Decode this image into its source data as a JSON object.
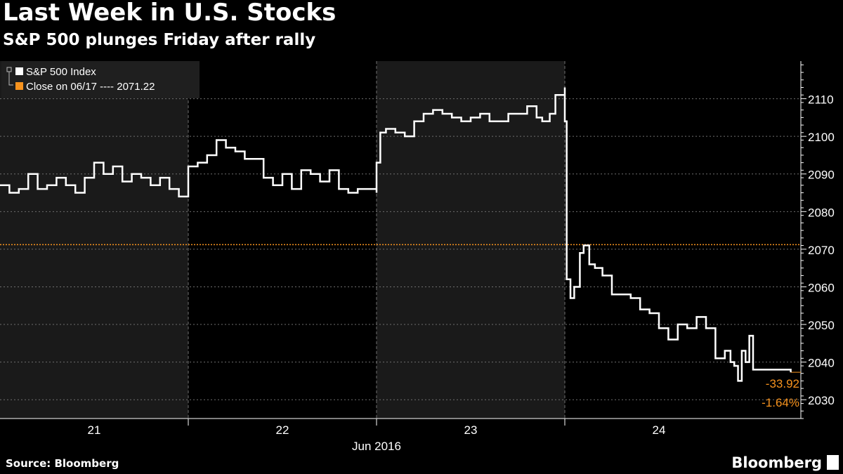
{
  "header": {
    "title": "Last Week in U.S. Stocks",
    "subtitle": "S&P 500 plunges Friday after rally"
  },
  "footer": {
    "source": "Source: Bloomberg",
    "brand": "Bloomberg"
  },
  "colors": {
    "line": "#ffffff",
    "reference": "#f7931e",
    "shade": "#1a1a1a",
    "grid": "#6f6f6f",
    "background": "#000000"
  },
  "chart_data": {
    "type": "line",
    "xlabel": "Jun 2016",
    "ylabel": "",
    "ylim": [
      2025,
      2120
    ],
    "y_ticks": [
      "2030",
      "2040",
      "2050",
      "2060",
      "2070",
      "2080",
      "2090",
      "2100",
      "2110"
    ],
    "days": [
      {
        "label": "21",
        "shaded": true
      },
      {
        "label": "22",
        "shaded": false
      },
      {
        "label": "23",
        "shaded": true
      },
      {
        "label": "24",
        "shaded": false
      }
    ],
    "grid": true,
    "legend": {
      "position": "top-left",
      "entries": [
        {
          "label": "S&P 500 Index",
          "color": "#ffffff"
        },
        {
          "label": "Close on 06/17 ---- 2071.22",
          "color": "#f7931e"
        }
      ]
    },
    "reference_line": {
      "label": "Close on 06/17",
      "value": 2071.22
    },
    "annotations": [
      "-33.92",
      "-1.64%"
    ],
    "last_value": 2037.3,
    "series": [
      {
        "name": "S&P 500 Index",
        "x": [
          0.0,
          0.05,
          0.1,
          0.15,
          0.2,
          0.25,
          0.3,
          0.35,
          0.4,
          0.45,
          0.5,
          0.55,
          0.6,
          0.65,
          0.7,
          0.75,
          0.8,
          0.85,
          0.9,
          0.95,
          1.0,
          1.0,
          1.05,
          1.1,
          1.15,
          1.2,
          1.25,
          1.3,
          1.35,
          1.4,
          1.45,
          1.5,
          1.55,
          1.6,
          1.65,
          1.7,
          1.75,
          1.8,
          1.85,
          1.9,
          1.95,
          2.0,
          2.0,
          2.02,
          2.05,
          2.1,
          2.15,
          2.2,
          2.25,
          2.3,
          2.35,
          2.4,
          2.45,
          2.5,
          2.55,
          2.6,
          2.65,
          2.7,
          2.75,
          2.8,
          2.85,
          2.88,
          2.92,
          2.95,
          3.0,
          3.0,
          3.01,
          3.03,
          3.05,
          3.08,
          3.1,
          3.13,
          3.16,
          3.2,
          3.25,
          3.3,
          3.35,
          3.4,
          3.45,
          3.5,
          3.55,
          3.6,
          3.65,
          3.7,
          3.75,
          3.8,
          3.85,
          3.88,
          3.9,
          3.92,
          3.94,
          3.96,
          3.98,
          4.0,
          4.2
        ],
        "y": [
          2087,
          2085,
          2086,
          2090,
          2086,
          2087,
          2089,
          2087,
          2085,
          2089,
          2093,
          2090,
          2092,
          2088,
          2090,
          2089,
          2087,
          2089,
          2086,
          2084,
          2085,
          2092,
          2093,
          2095,
          2099,
          2097,
          2096,
          2094,
          2094,
          2089,
          2087,
          2090,
          2086,
          2091,
          2090,
          2088,
          2091,
          2086,
          2085,
          2086,
          2086,
          2085,
          2093,
          2101,
          2102,
          2101,
          2100,
          2104,
          2106,
          2107,
          2106,
          2105,
          2104,
          2105,
          2106,
          2104,
          2104,
          2106,
          2106,
          2108,
          2105,
          2104,
          2106,
          2111,
          2113,
          2104,
          2062,
          2057,
          2060,
          2069,
          2071,
          2066,
          2065,
          2063,
          2058,
          2058,
          2057,
          2054,
          2053,
          2049,
          2046,
          2050,
          2049,
          2052,
          2049,
          2041,
          2043,
          2040,
          2039,
          2035,
          2043,
          2040,
          2047,
          2038,
          2037.3
        ]
      }
    ]
  }
}
